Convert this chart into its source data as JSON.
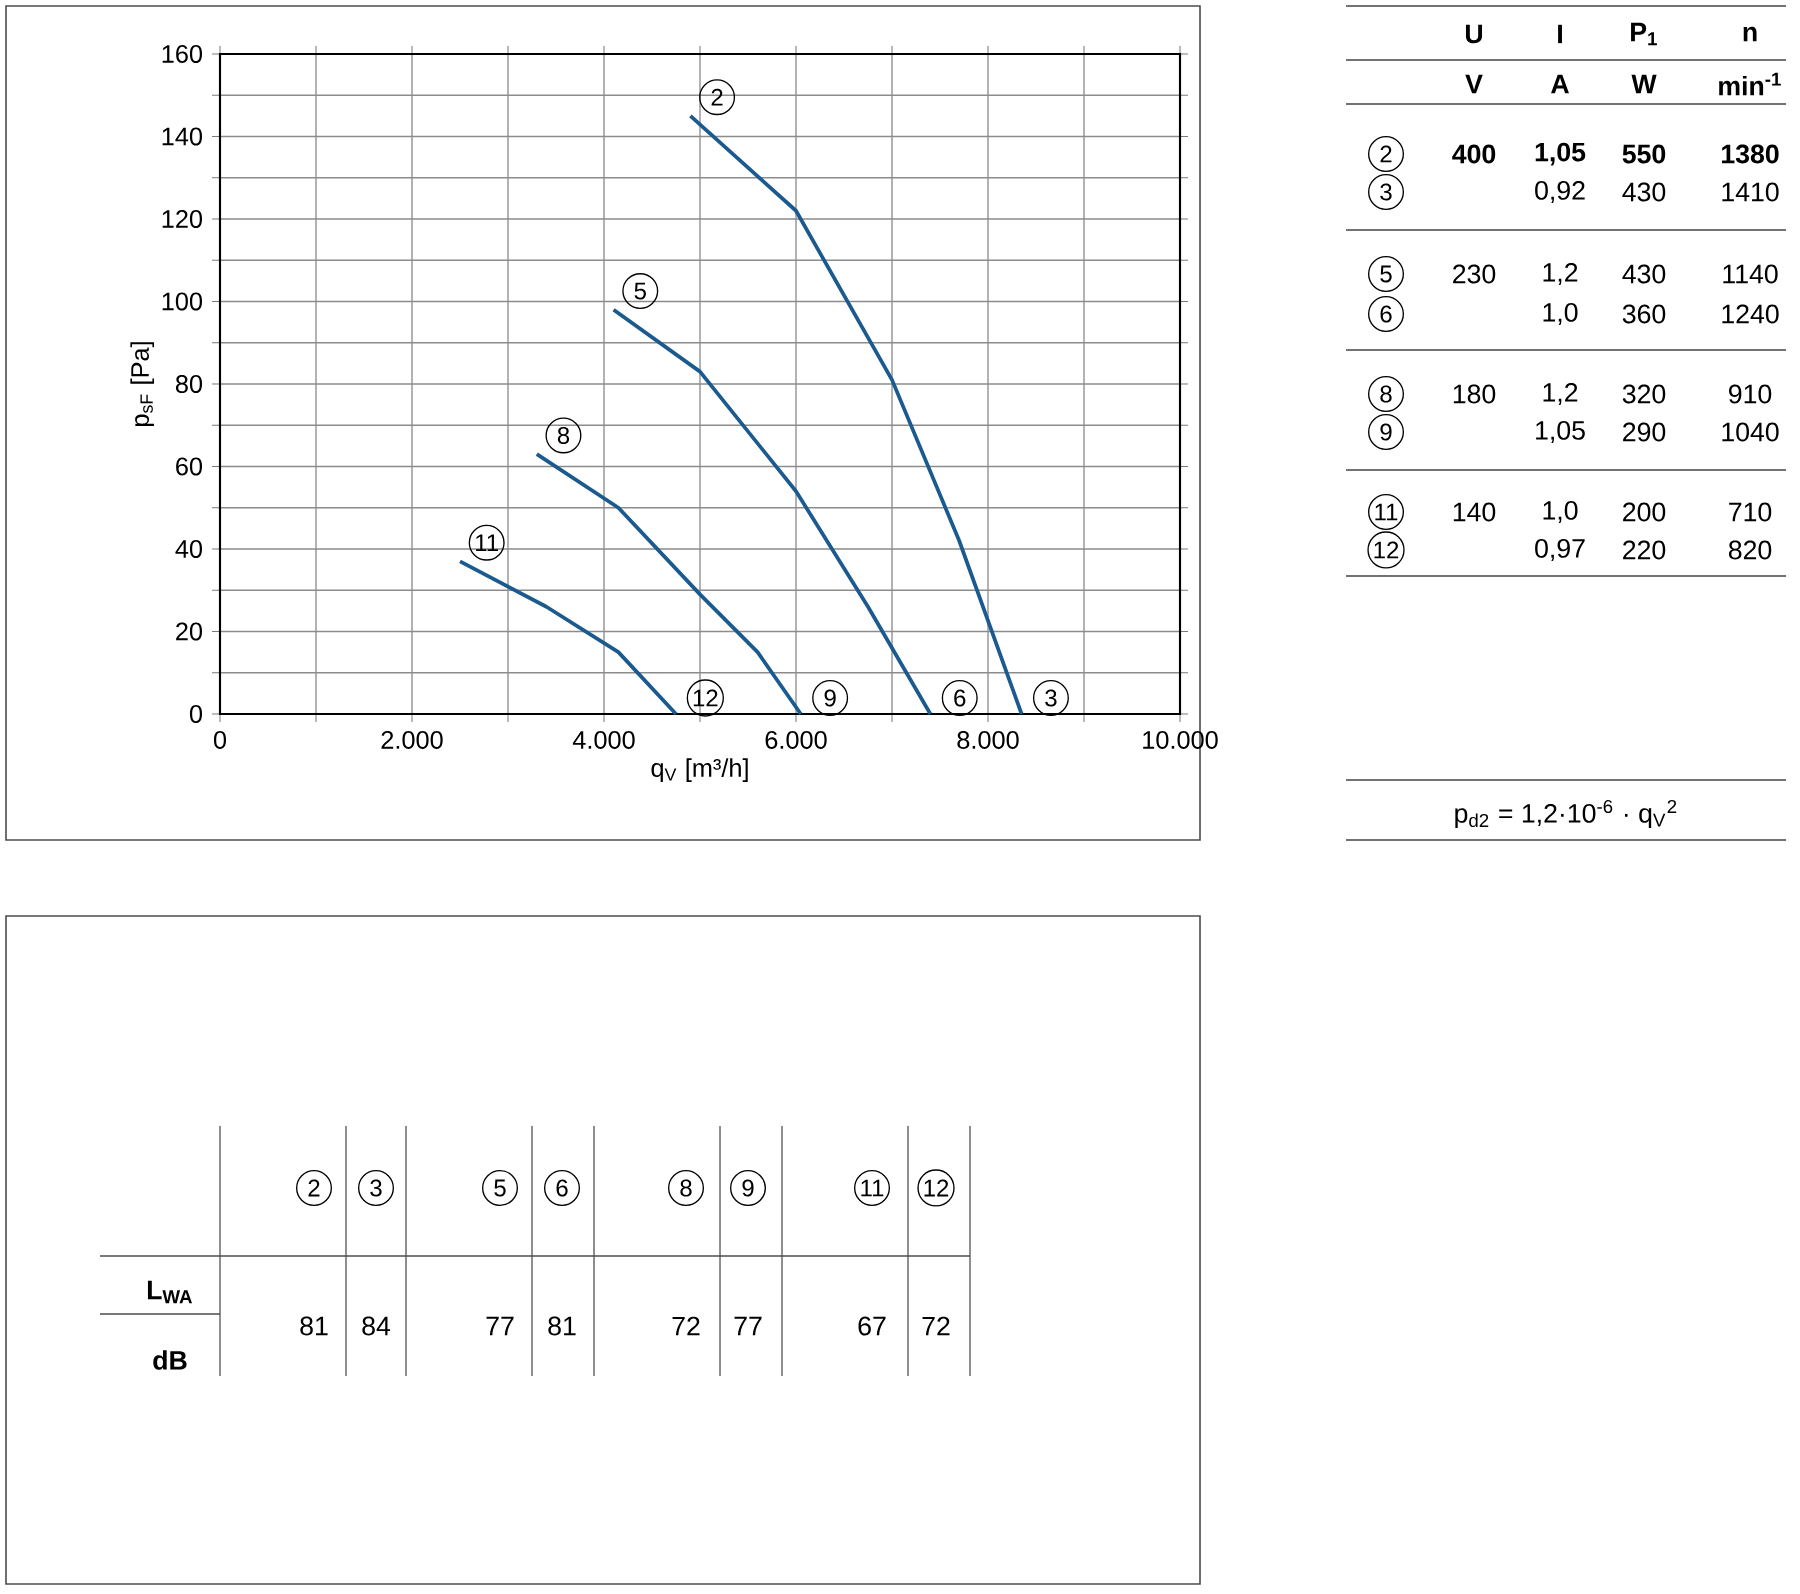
{
  "chart_data": {
    "type": "line",
    "xlabel": "q$_{V}$ [m³/h]",
    "ylabel": "p$_{sF}$ [Pa]",
    "xlim": [
      0,
      10000
    ],
    "ylim": [
      0,
      160
    ],
    "xticks": [
      0,
      {
        "value": 1000,
        "label": null
      },
      {
        "value": 2000,
        "label": "2.000"
      },
      {
        "value": 3000,
        "label": null
      },
      {
        "value": 4000,
        "label": "4.000"
      },
      {
        "value": 5000,
        "label": null
      },
      {
        "value": 6000,
        "label": "6.000"
      },
      {
        "value": 7000,
        "label": null
      },
      {
        "value": 8000,
        "label": "8.000"
      },
      {
        "value": 9000,
        "label": null
      },
      {
        "value": 10000,
        "label": "10.000"
      }
    ],
    "yticks": [
      0,
      {
        "value": 10,
        "label": null
      },
      20,
      {
        "value": 30,
        "label": null
      },
      40,
      {
        "value": 50,
        "label": null
      },
      60,
      {
        "value": 70,
        "label": null
      },
      80,
      {
        "value": 90,
        "label": null
      },
      100,
      {
        "value": 110,
        "label": null
      },
      120,
      {
        "value": 130,
        "label": null
      },
      140,
      {
        "value": 150,
        "label": null
      },
      160
    ],
    "grid": true,
    "series": [
      {
        "color": "#1b5a8f",
        "x": [
          4900,
          6000,
          7000,
          7700,
          8350
        ],
        "values": [
          145,
          122,
          81,
          42,
          0
        ]
      },
      {
        "color": "#1b5a8f",
        "x": [
          4100,
          5000,
          6000,
          6750,
          7400
        ],
        "values": [
          98,
          83,
          54,
          26,
          0
        ]
      },
      {
        "color": "#1b5a8f",
        "x": [
          3300,
          4150,
          5000,
          5600,
          6050
        ],
        "values": [
          63,
          50,
          29,
          15,
          0
        ]
      },
      {
        "color": "#1b5a8f",
        "x": [
          2500,
          3400,
          4150,
          4750
        ],
        "values": [
          37,
          26,
          15,
          0
        ]
      }
    ],
    "annotations": [
      "2",
      "3",
      "5",
      "6",
      "8",
      "9",
      "11",
      "12",
      "**U**",
      "**I**",
      "**P$_{1}$**",
      "**n**",
      "**V**",
      "**A**",
      "**W**",
      "**min$^{-1}$**",
      "2",
      "**400**",
      "**1,05**",
      "**550**",
      "**1380**",
      "3",
      "0,92",
      "430",
      "1410",
      "5",
      "230",
      "1,2",
      "430",
      "1140",
      "6",
      "1,0",
      "360",
      "1240",
      "8",
      "180",
      "1,2",
      "320",
      "910",
      "9",
      "1,05",
      "290",
      "1040",
      "11",
      "140",
      "1,0",
      "200",
      "710",
      "12",
      "0,97",
      "220",
      "820",
      "p$_{d2}$ = 1,2·10$^{-6}$ · q$_{V}$$^{2}$",
      "2",
      "3",
      "5",
      "6",
      "8",
      "9",
      "11",
      "12",
      "**L$_{WA}$**",
      "**dB**",
      "81",
      "84",
      "77",
      "81",
      "72",
      "77",
      "67",
      "72"
    ]
  }
}
